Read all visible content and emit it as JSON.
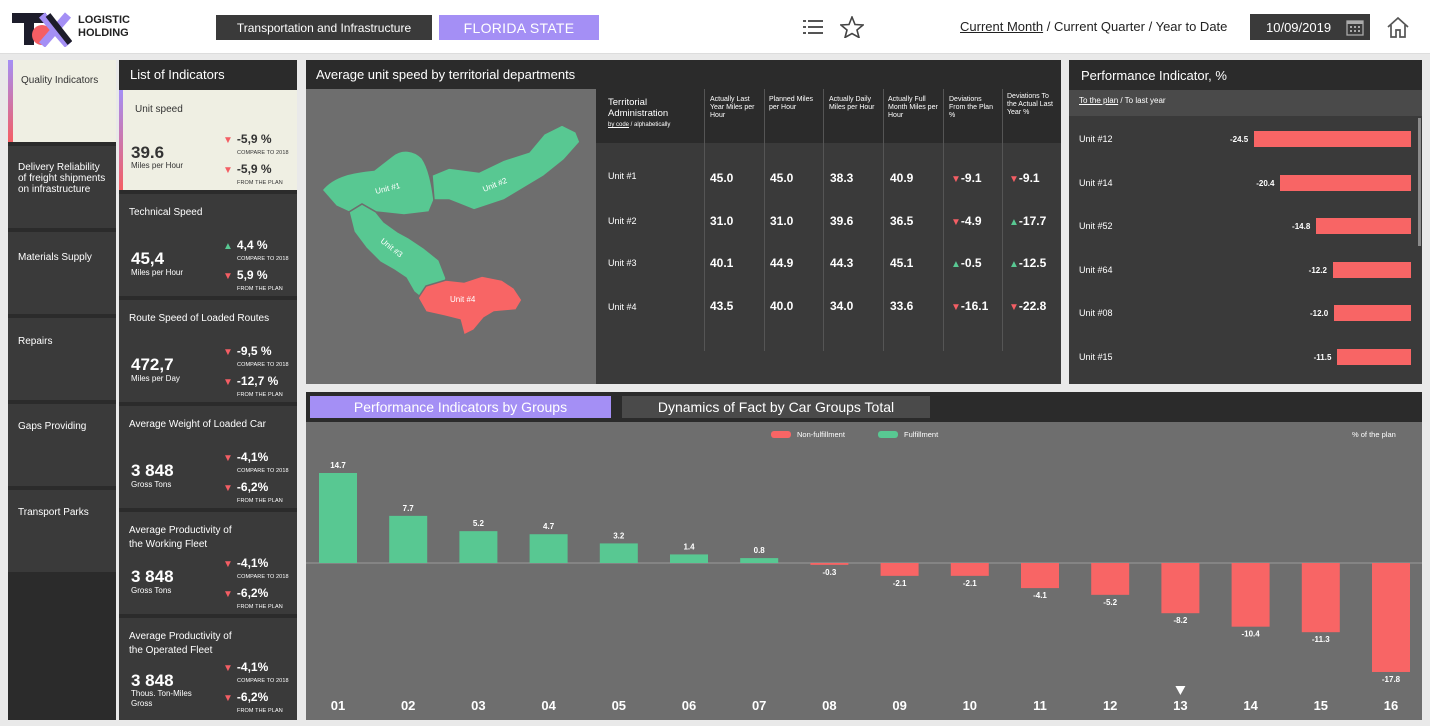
{
  "header": {
    "logo_line1": "LOGISTIC",
    "logo_line2": "HOLDING",
    "category_button": "Transportation and Infrastructure",
    "state_button": "FLORIDA STATE",
    "period_current_month": "Current Month",
    "period_sep1": " / ",
    "period_current_quarter": "Current Quarter",
    "period_sep2": " / ",
    "period_ytd": "Year to Date",
    "date_value": "10/09/2019"
  },
  "sidebar": {
    "items": [
      {
        "label": "Quality Indicators"
      },
      {
        "label": "Delivery Reliability of freight shipments on infrastructure"
      },
      {
        "label": "Materials Supply"
      },
      {
        "label": "Repairs"
      },
      {
        "label": "Gaps Providing"
      },
      {
        "label": "Transport Parks"
      }
    ]
  },
  "indicators": {
    "title": "List of Indicators",
    "items": [
      {
        "name": "Unit speed",
        "value": "39.6",
        "unit": "Miles per Hour",
        "d1": "-5,9 %",
        "d1_dir": "down",
        "d1_sub": "COMPARE TO 2018",
        "d2": "-5,9 %",
        "d2_dir": "down",
        "d2_sub": "FROM THE PLAN"
      },
      {
        "name": "Technical Speed",
        "value": "45,4",
        "unit": "Miles per Hour",
        "d1": "4,4 %",
        "d1_dir": "up",
        "d1_sub": "COMPARE TO 2018",
        "d2": "5,9 %",
        "d2_dir": "down",
        "d2_sub": "FROM THE PLAN"
      },
      {
        "name": "Route Speed of Loaded Routes",
        "value": "472,7",
        "unit": "Miles per Day",
        "d1": "-9,5 %",
        "d1_dir": "down",
        "d1_sub": "COMPARE TO 2018",
        "d2": "-12,7 %",
        "d2_dir": "down",
        "d2_sub": "FROM THE PLAN"
      },
      {
        "name": "Average Weight of Loaded Car",
        "value": "3 848",
        "unit": "Gross Tons",
        "d1": "-4,1%",
        "d1_dir": "down",
        "d1_sub": "COMPARE TO 2018",
        "d2": "-6,2%",
        "d2_dir": "down",
        "d2_sub": "FROM THE PLAN"
      },
      {
        "name": "Average Productivity of the Working Fleet",
        "value": "3 848",
        "unit": "Gross Tons",
        "d1": "-4,1%",
        "d1_dir": "down",
        "d1_sub": "COMPARE TO 2018",
        "d2": "-6,2%",
        "d2_dir": "down",
        "d2_sub": "FROM THE PLAN"
      },
      {
        "name": "Average Productivity of the Operated Fleet",
        "value": "3 848",
        "unit": "Thous. Ton-Miles Gross",
        "d1": "-4,1%",
        "d1_dir": "down",
        "d1_sub": "COMPARE TO 2018",
        "d2": "-6,2%",
        "d2_dir": "down",
        "d2_sub": "FROM THE PLAN"
      }
    ]
  },
  "speed_panel": {
    "title": "Average unit speed by territorial departments",
    "map_labels": [
      "Unit #1",
      "Unit #2",
      "Unit #3",
      "Unit #4"
    ],
    "table": {
      "col0": "Territorial Administration",
      "col0_sort_a": "by code",
      "col0_sort_sep": " / ",
      "col0_sort_b": "alphabetically",
      "headers": [
        "Actually Last Year Miles per Hour",
        "Planned Miles per Hour",
        "Actually Daily Miles per Hour",
        "Actually Full Month Miles per Hour",
        "Deviations From the Plan %",
        "Deviations To the Actual Last Year %"
      ],
      "rows": [
        {
          "label": "Unit #1",
          "cells": [
            "45.0",
            "45.0",
            "38.3",
            "40.9"
          ],
          "dev1": "-9.1",
          "dev1_dir": "down",
          "dev2": "-9.1",
          "dev2_dir": "down"
        },
        {
          "label": "Unit #2",
          "cells": [
            "31.0",
            "31.0",
            "39.6",
            "36.5"
          ],
          "dev1": "-4.9",
          "dev1_dir": "down",
          "dev2": "-17.7",
          "dev2_dir": "up"
        },
        {
          "label": "Unit #3",
          "cells": [
            "40.1",
            "44.9",
            "44.3",
            "45.1"
          ],
          "dev1": "-0.5",
          "dev1_dir": "up",
          "dev2": "-12.5",
          "dev2_dir": "up"
        },
        {
          "label": "Unit #4",
          "cells": [
            "43.5",
            "40.0",
            "34.0",
            "33.6"
          ],
          "dev1": "-16.1",
          "dev1_dir": "down",
          "dev2": "-22.8",
          "dev2_dir": "down"
        }
      ]
    }
  },
  "performance": {
    "title": "Performance Indicator, %",
    "tab_plan": "To the plan",
    "tab_sep": " / ",
    "tab_last_year": "To last year",
    "items": [
      {
        "label": "Unit #12",
        "value": -24.5,
        "text": "-24.5"
      },
      {
        "label": "Unit #14",
        "value": -20.4,
        "text": "-20.4"
      },
      {
        "label": "Unit #52",
        "value": -14.8,
        "text": "-14.8"
      },
      {
        "label": "Unit #64",
        "value": -12.2,
        "text": "-12.2"
      },
      {
        "label": "Unit #08",
        "value": -12.0,
        "text": "-12.0"
      },
      {
        "label": "Unit #15",
        "value": -11.5,
        "text": "-11.5"
      }
    ]
  },
  "groups": {
    "tab_active": "Performance Indicators by Groups",
    "tab_inactive": "Dynamics of Fact by Car Groups Total",
    "legend_non": "Non-fulfillment",
    "legend_ful": "Fulfillment",
    "unit_note": "% of the plan",
    "selected_category": "13"
  },
  "chart_data": {
    "type": "bar",
    "categories": [
      "01",
      "02",
      "03",
      "04",
      "05",
      "06",
      "07",
      "08",
      "09",
      "10",
      "11",
      "12",
      "13",
      "14",
      "15",
      "16"
    ],
    "values": [
      14.7,
      7.7,
      5.2,
      4.7,
      3.2,
      1.4,
      0.8,
      -0.3,
      -2.1,
      -2.1,
      -4.1,
      -5.2,
      -8.2,
      -10.4,
      -11.3,
      -17.8
    ],
    "labels": [
      "14.7",
      "7.7",
      "5.2",
      "4.7",
      "3.2",
      "1.4",
      "0.8",
      "-0.3",
      "-2.1",
      "-2.1",
      "-4.1",
      "-5.2",
      "-8.2",
      "-10.4",
      "-11.3",
      "-17.8"
    ],
    "series": [
      {
        "name": "Fulfillment",
        "color": "#58c892"
      },
      {
        "name": "Non-fulfillment",
        "color": "#f86565"
      }
    ],
    "title": "",
    "xlabel": "",
    "ylabel": "% of the plan",
    "legend": "top-center"
  },
  "colors": {
    "accent": "#a48ff5",
    "positive": "#58c892",
    "negative": "#f86565",
    "panel": "#3a3a3a"
  }
}
